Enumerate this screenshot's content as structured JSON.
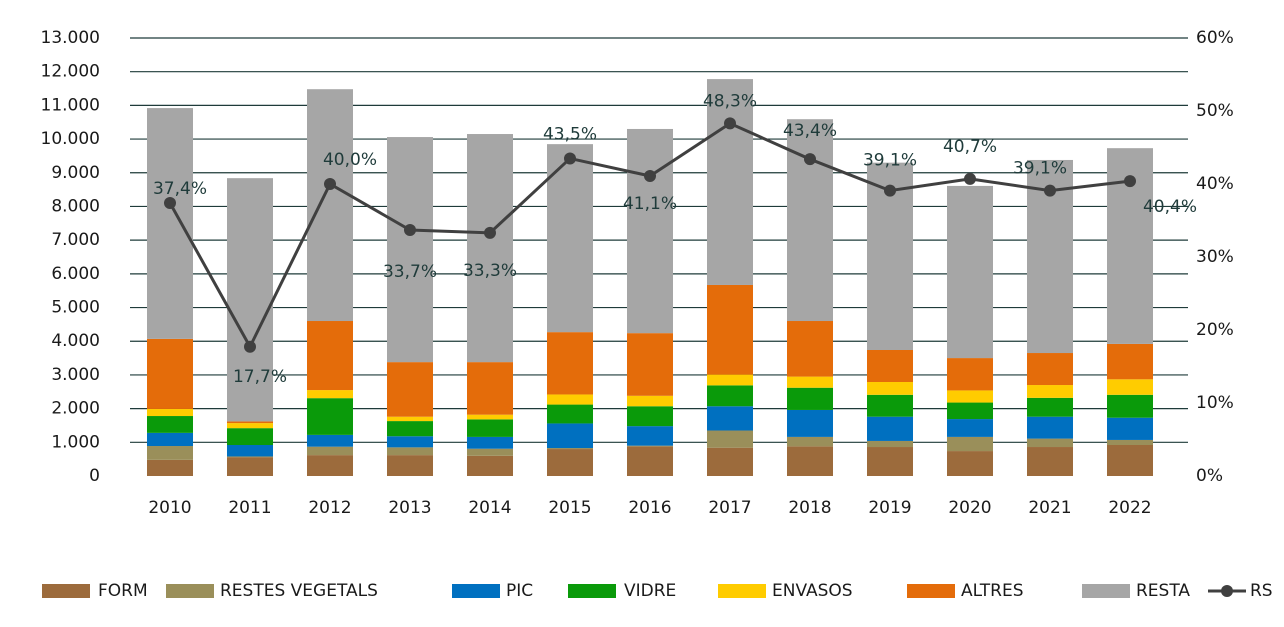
{
  "chart_data": {
    "type": "bar",
    "categories": [
      "2010",
      "2011",
      "2012",
      "2013",
      "2014",
      "2015",
      "2016",
      "2017",
      "2018",
      "2019",
      "2020",
      "2021",
      "2022"
    ],
    "series": [
      {
        "name": "FORM",
        "color": "#9c6b3c",
        "values": [
          480,
          560,
          620,
          620,
          600,
          800,
          880,
          840,
          880,
          860,
          740,
          860,
          920
        ]
      },
      {
        "name": "RESTES VEGETALS",
        "color": "#9a8f5a",
        "values": [
          410,
          20,
          250,
          230,
          210,
          30,
          20,
          510,
          280,
          180,
          420,
          250,
          150
        ]
      },
      {
        "name": "PIC",
        "color": "#0070c0",
        "values": [
          390,
          340,
          350,
          330,
          350,
          730,
          580,
          720,
          800,
          720,
          530,
          650,
          660
        ]
      },
      {
        "name": "VIDRE",
        "color": "#0a9a0a",
        "values": [
          500,
          500,
          1090,
          450,
          520,
          560,
          590,
          620,
          660,
          650,
          490,
          560,
          680
        ]
      },
      {
        "name": "ENVASOS",
        "color": "#ffcc00",
        "values": [
          210,
          150,
          240,
          130,
          140,
          300,
          310,
          320,
          330,
          380,
          360,
          380,
          460
        ]
      },
      {
        "name": "ALTRES",
        "color": "#e46c0a",
        "values": [
          2080,
          50,
          2050,
          1620,
          1560,
          1850,
          1860,
          2660,
          1650,
          950,
          960,
          950,
          1050
        ]
      },
      {
        "name": "RESTA",
        "color": "#a6a6a6",
        "values": [
          6850,
          7220,
          6880,
          6680,
          6770,
          5580,
          6060,
          6110,
          5990,
          5560,
          5110,
          5730,
          5810
        ]
      },
      {
        "name": "RS",
        "type": "line",
        "axis": "y2",
        "color": "#404040",
        "values": [
          37.4,
          17.7,
          40.0,
          33.7,
          33.3,
          43.5,
          41.1,
          48.3,
          43.4,
          39.1,
          40.7,
          39.1,
          40.4
        ],
        "value_labels": [
          "37,4%",
          "17,7%",
          "40,0%",
          "33,7%",
          "33,3%",
          "43,5%",
          "41,1%",
          "48,3%",
          "43,4%",
          "39,1%",
          "40,7%",
          "39,1%",
          "40,4%"
        ]
      }
    ],
    "stacked": true,
    "ylim": [
      0,
      13000
    ],
    "yticks": [
      0,
      {
        "value": 1000,
        "label": "1.000"
      },
      {
        "value": 2000,
        "label": "2.000"
      },
      {
        "value": 3000,
        "label": "3.000"
      },
      {
        "value": 4000,
        "label": "4.000"
      },
      {
        "value": 5000,
        "label": "5.000"
      },
      {
        "value": 6000,
        "label": "6.000"
      },
      {
        "value": 7000,
        "label": "7.000"
      },
      {
        "value": 8000,
        "label": "8.000"
      },
      {
        "value": 9000,
        "label": "9.000"
      },
      {
        "value": 10000,
        "label": "10.000"
      },
      {
        "value": 11000,
        "label": "11.000"
      },
      {
        "value": 12000,
        "label": "12.000"
      },
      {
        "value": 13000,
        "label": "13.000"
      }
    ],
    "y2lim": [
      0,
      60
    ],
    "y2ticks": [
      {
        "value": 0,
        "label": "0%"
      },
      {
        "value": 10,
        "label": "10%"
      },
      {
        "value": 20,
        "label": "20%"
      },
      {
        "value": 30,
        "label": "30%"
      },
      {
        "value": 40,
        "label": "40%"
      },
      {
        "value": 50,
        "label": "50%"
      },
      {
        "value": 60,
        "label": "60%"
      }
    ],
    "grid": true,
    "legend": "bottom"
  }
}
